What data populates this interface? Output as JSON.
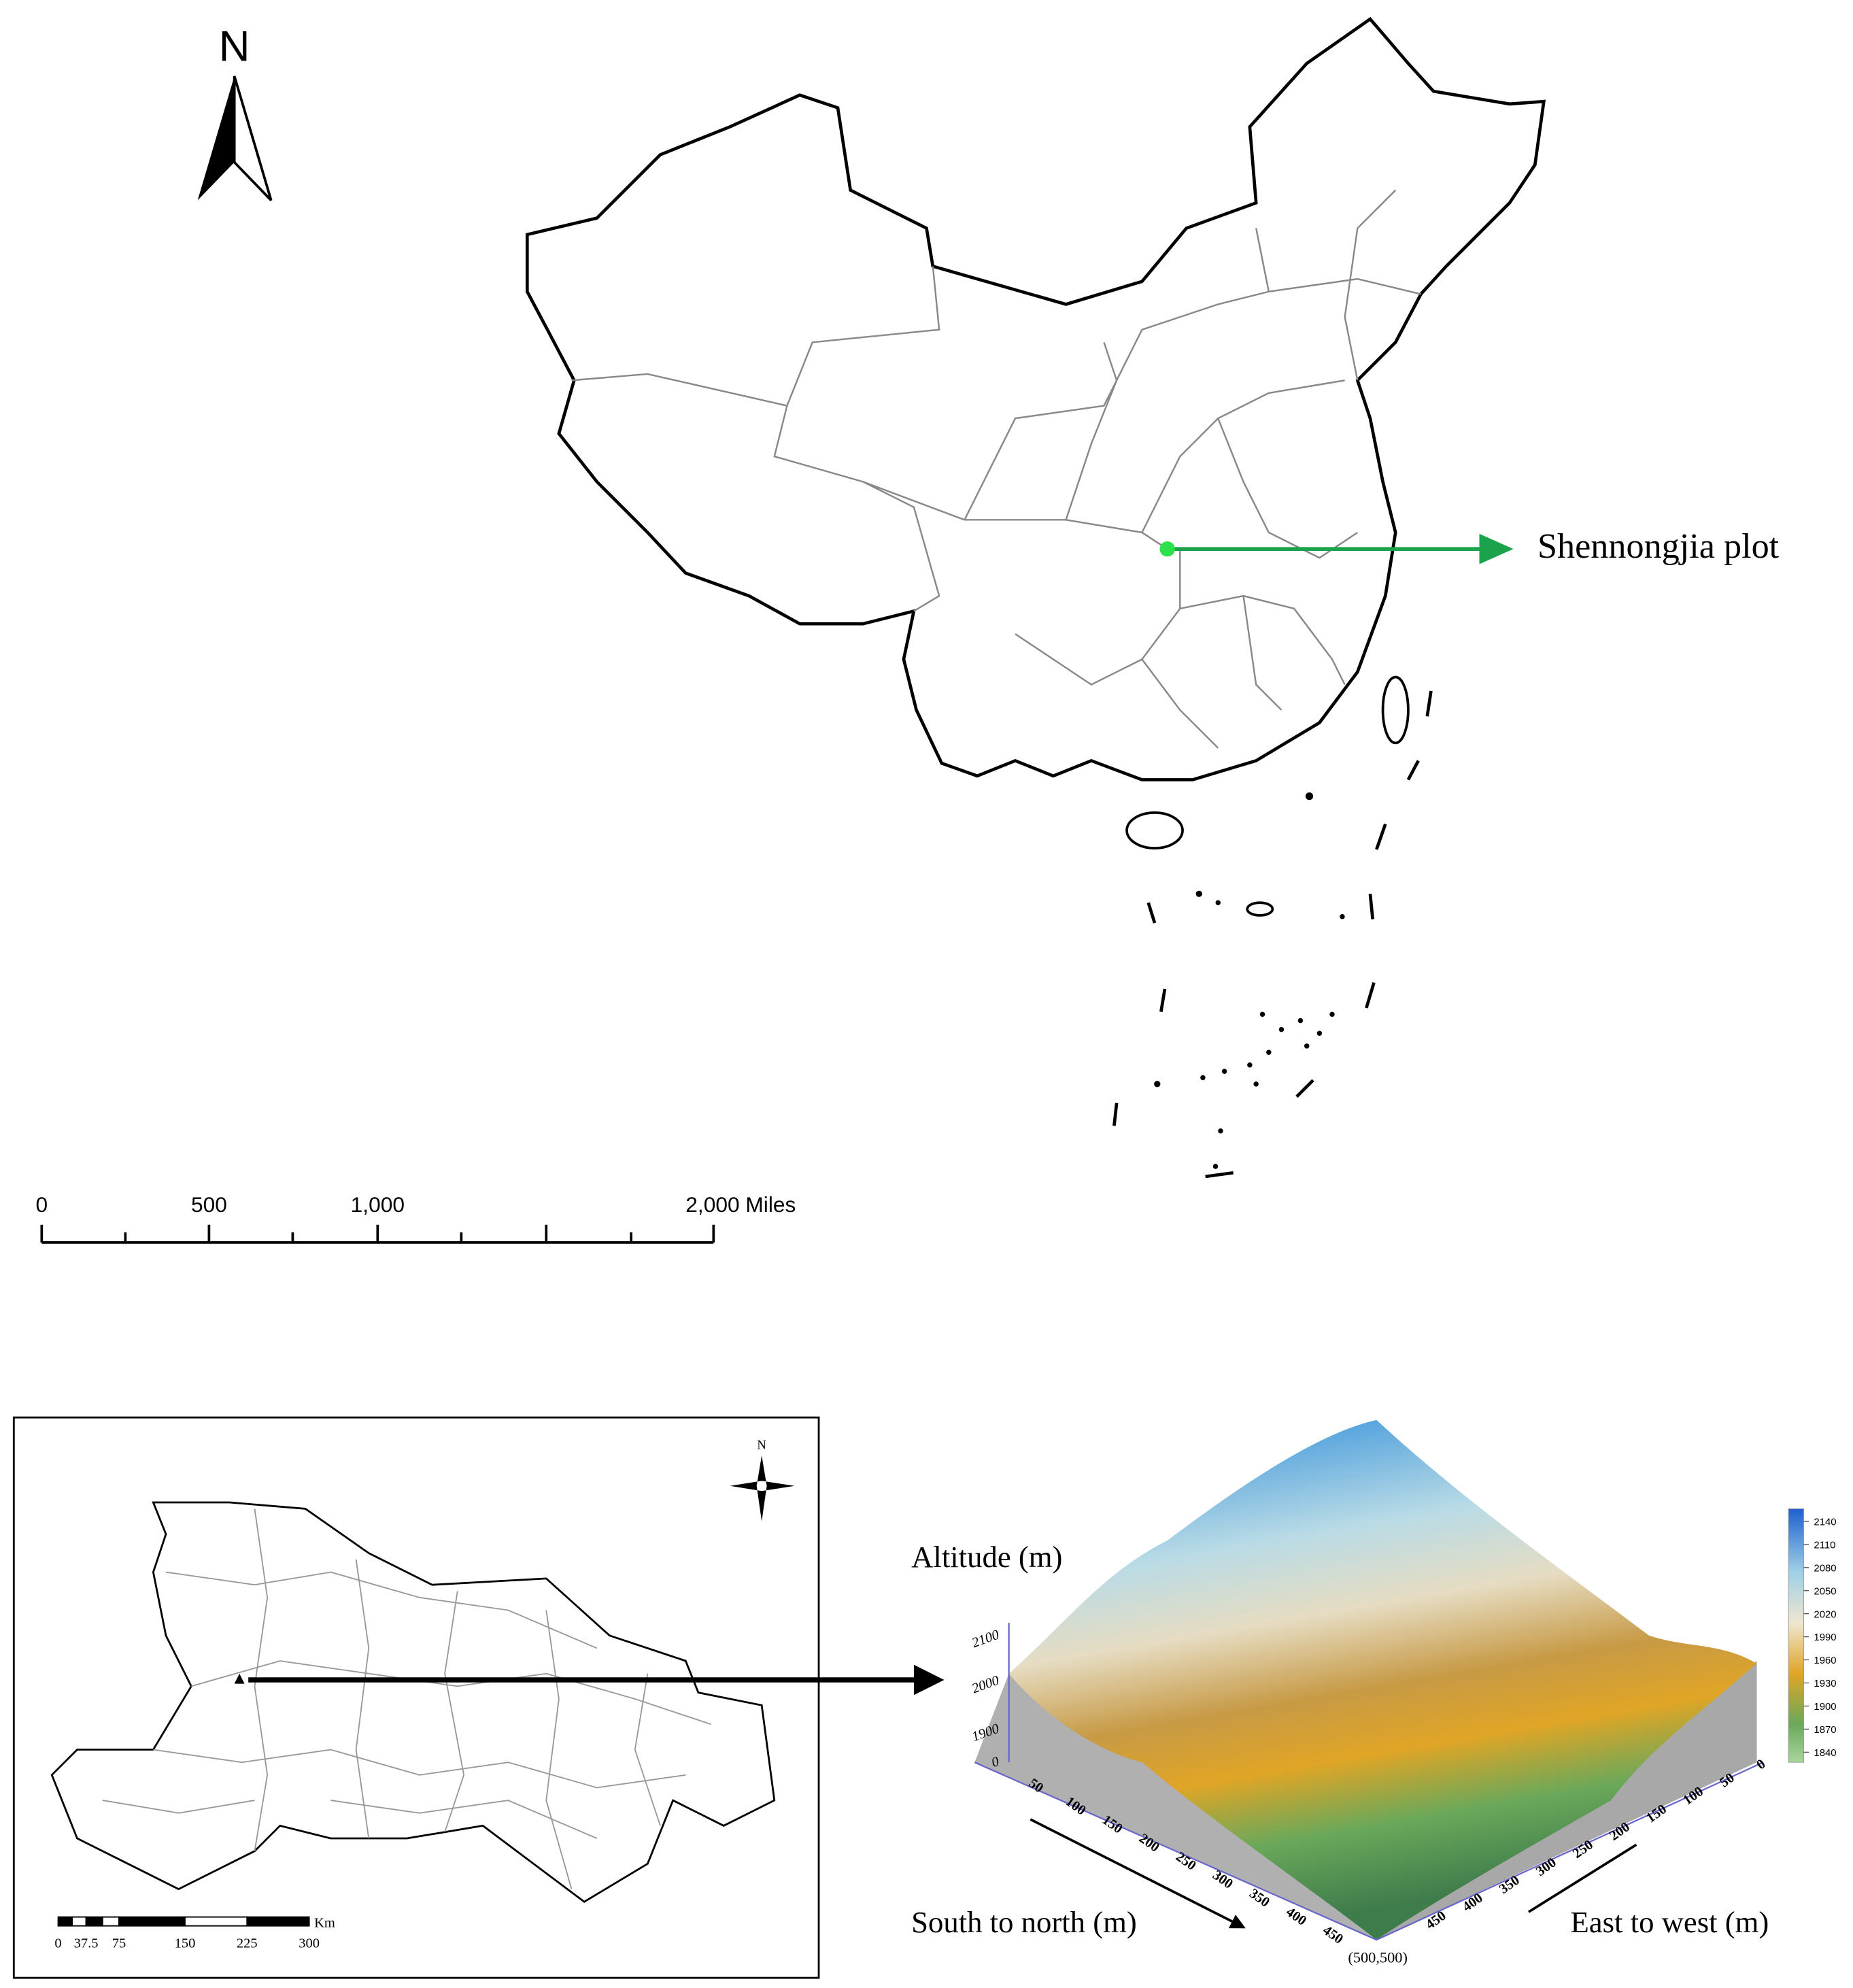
{
  "north_arrow": {
    "label": "N"
  },
  "scale_bar": {
    "labels": [
      "0",
      "500",
      "1,000",
      "2,000 Miles"
    ]
  },
  "plot_marker": {
    "label": "Shennongjia plot"
  },
  "hubei_map": {
    "north_label": "N",
    "scale_labels": [
      "0",
      "37.5",
      "75",
      "150",
      "225",
      "300"
    ],
    "scale_unit": "Km"
  },
  "terrain_3d": {
    "z_title": "Altitude (m)",
    "z_ticks": [
      "2100",
      "2000",
      "1900",
      "0"
    ],
    "x_title": "South to north (m)",
    "x_ticks": [
      "50",
      "100",
      "150",
      "200",
      "250",
      "300",
      "350",
      "400",
      "450"
    ],
    "y_title": "East to west (m)",
    "y_ticks": [
      "0",
      "50",
      "100",
      "150",
      "200",
      "250",
      "300",
      "350",
      "400",
      "450"
    ],
    "corner_label": "(500,500)",
    "colorbar_ticks": [
      "2140",
      "2110",
      "2080",
      "2050",
      "2020",
      "1990",
      "1960",
      "1930",
      "1900",
      "1870",
      "1840"
    ]
  }
}
